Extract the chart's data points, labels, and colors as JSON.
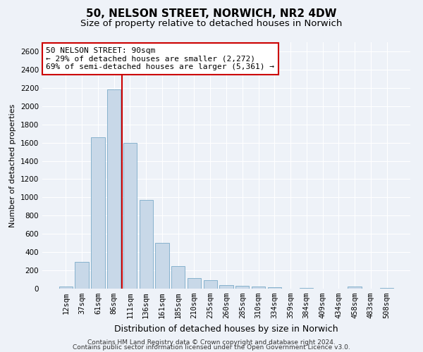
{
  "title": "50, NELSON STREET, NORWICH, NR2 4DW",
  "subtitle": "Size of property relative to detached houses in Norwich",
  "xlabel": "Distribution of detached houses by size in Norwich",
  "ylabel": "Number of detached properties",
  "categories": [
    "12sqm",
    "37sqm",
    "61sqm",
    "86sqm",
    "111sqm",
    "136sqm",
    "161sqm",
    "185sqm",
    "210sqm",
    "235sqm",
    "260sqm",
    "285sqm",
    "310sqm",
    "334sqm",
    "359sqm",
    "384sqm",
    "409sqm",
    "434sqm",
    "458sqm",
    "483sqm",
    "508sqm"
  ],
  "values": [
    25,
    290,
    1660,
    2180,
    1600,
    975,
    500,
    245,
    115,
    90,
    35,
    30,
    20,
    15,
    0,
    10,
    0,
    0,
    20,
    0,
    10
  ],
  "bar_color": "#c8d8e8",
  "bar_edge_color": "#7aaac8",
  "red_line_x": 3.5,
  "annotation_text": "50 NELSON STREET: 90sqm\n← 29% of detached houses are smaller (2,272)\n69% of semi-detached houses are larger (5,361) →",
  "annotation_box_color": "#ffffff",
  "annotation_box_edge": "#cc0000",
  "ylim": [
    0,
    2700
  ],
  "yticks": [
    0,
    200,
    400,
    600,
    800,
    1000,
    1200,
    1400,
    1600,
    1800,
    2000,
    2200,
    2400,
    2600
  ],
  "footer1": "Contains HM Land Registry data © Crown copyright and database right 2024.",
  "footer2": "Contains public sector information licensed under the Open Government Licence v3.0.",
  "background_color": "#eef2f8",
  "grid_color": "#ffffff",
  "title_fontsize": 11,
  "subtitle_fontsize": 9.5,
  "xlabel_fontsize": 9,
  "ylabel_fontsize": 8,
  "tick_fontsize": 7.5,
  "annotation_fontsize": 8,
  "footer_fontsize": 6.5
}
